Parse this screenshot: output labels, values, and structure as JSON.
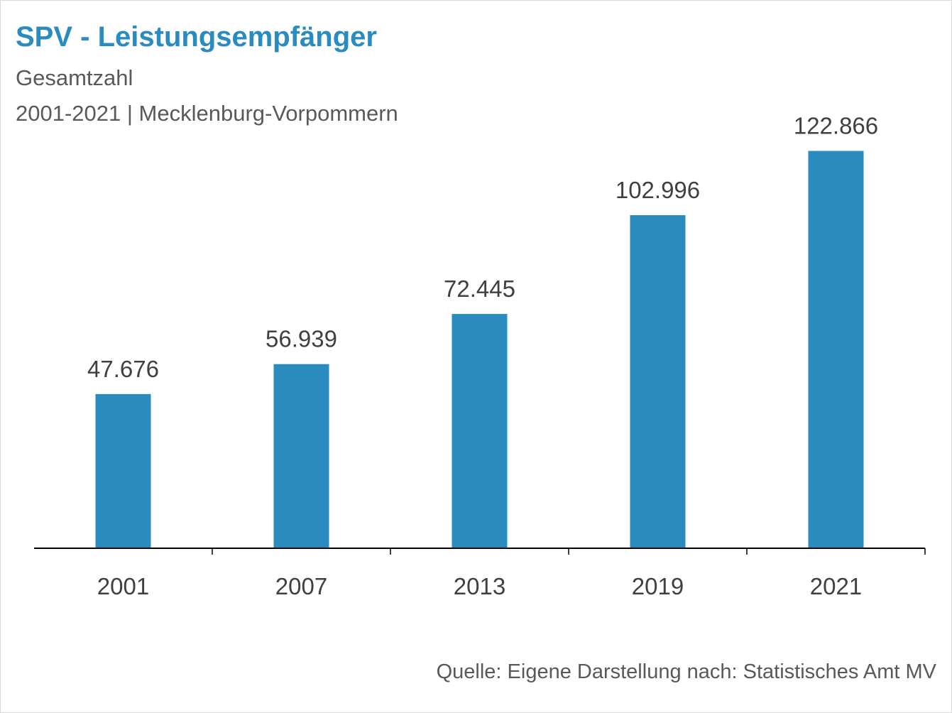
{
  "header": {
    "title": "SPV - Leistungsempfänger",
    "subtitle_1": "Gesamtzahl",
    "subtitle_2": "2001-2021 | Mecklenburg-Vorpommern"
  },
  "footer": {
    "source": "Quelle: Eigene Darstellung nach: Statistisches Amt MV"
  },
  "colors": {
    "bar": "#2a8bbf",
    "title": "#2a8bbf"
  },
  "chart_data": {
    "type": "bar",
    "title": "SPV - Leistungsempfänger",
    "categories": [
      "2001",
      "2007",
      "2013",
      "2019",
      "2021"
    ],
    "values": [
      47676,
      56939,
      72445,
      102996,
      122866
    ],
    "value_labels": [
      "47.676",
      "56.939",
      "72.445",
      "102.996",
      "122.866"
    ],
    "xlabel": "",
    "ylabel": "",
    "ylim": [
      0,
      130000
    ],
    "grid": false,
    "legend": "none"
  }
}
